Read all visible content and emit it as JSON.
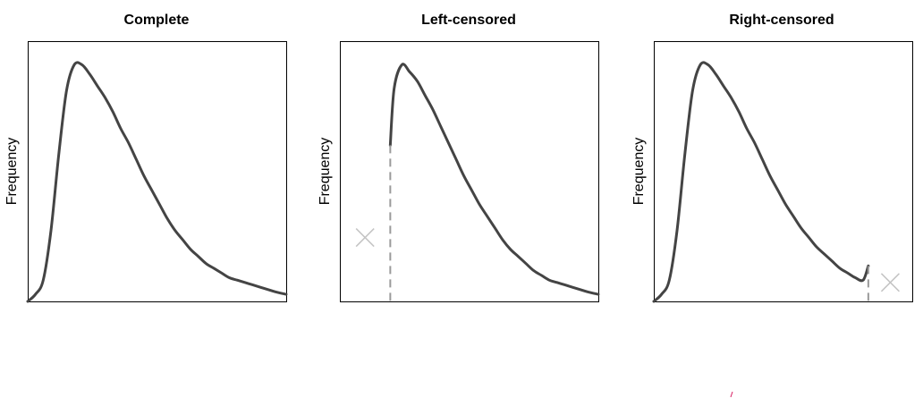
{
  "chart_data": [
    {
      "type": "line",
      "title": "Complete",
      "xlabel": "",
      "ylabel": "Frequency",
      "x_ticks_shown": false,
      "y_ticks_shown": false,
      "grid": false,
      "xlim": [
        0,
        10
      ],
      "ylim": [
        0,
        1.1
      ],
      "censoring": "none",
      "series": [
        {
          "x": [
            0.0,
            0.3,
            0.6,
            0.9,
            1.2,
            1.5,
            1.8,
            2.1,
            2.4,
            2.7,
            3.0,
            3.3,
            3.6,
            3.9,
            4.2,
            4.5,
            4.8,
            5.1,
            5.4,
            5.7,
            6.0,
            6.3,
            6.6,
            6.9,
            7.2,
            7.5,
            7.8,
            8.1,
            8.4,
            8.7,
            9.0,
            9.3,
            9.6,
            10.0
          ],
          "values": [
            0.0,
            0.03,
            0.09,
            0.3,
            0.62,
            0.89,
            1.0,
            1.0,
            0.96,
            0.91,
            0.86,
            0.8,
            0.73,
            0.67,
            0.6,
            0.53,
            0.47,
            0.41,
            0.35,
            0.3,
            0.26,
            0.22,
            0.19,
            0.16,
            0.14,
            0.12,
            0.1,
            0.09,
            0.08,
            0.07,
            0.06,
            0.05,
            0.04,
            0.03
          ]
        }
      ]
    },
    {
      "type": "line",
      "title": "Left-censored",
      "xlabel": "",
      "ylabel": "Frequency",
      "x_ticks_shown": false,
      "y_ticks_shown": false,
      "grid": false,
      "xlim": [
        0,
        10
      ],
      "ylim": [
        0,
        1.1
      ],
      "censoring": "left",
      "censor_x": 1.95,
      "censor_mark": "x",
      "censor_mark_color": "#c4c4c4",
      "series": [
        {
          "x": [
            1.95,
            2.1,
            2.4,
            2.7,
            3.0,
            3.3,
            3.6,
            3.9,
            4.2,
            4.5,
            4.8,
            5.1,
            5.4,
            5.7,
            6.0,
            6.3,
            6.6,
            6.9,
            7.2,
            7.5,
            7.8,
            8.1,
            8.4,
            8.7,
            9.0,
            9.3,
            9.6,
            10.0
          ],
          "values": [
            0.66,
            0.9,
            1.0,
            0.97,
            0.93,
            0.87,
            0.81,
            0.74,
            0.67,
            0.6,
            0.53,
            0.47,
            0.41,
            0.36,
            0.31,
            0.26,
            0.22,
            0.19,
            0.16,
            0.13,
            0.11,
            0.09,
            0.08,
            0.07,
            0.06,
            0.05,
            0.04,
            0.03
          ]
        }
      ]
    },
    {
      "type": "line",
      "title": "Right-censored",
      "xlabel": "",
      "ylabel": "Frequency",
      "x_ticks_shown": false,
      "y_ticks_shown": false,
      "grid": false,
      "xlim": [
        0,
        10
      ],
      "ylim": [
        0,
        1.1
      ],
      "censoring": "right",
      "censor_x": 8.3,
      "censor_mark": "x",
      "censor_mark_color": "#c4c4c4",
      "series": [
        {
          "x": [
            0.0,
            0.3,
            0.6,
            0.9,
            1.2,
            1.5,
            1.8,
            2.1,
            2.4,
            2.7,
            3.0,
            3.3,
            3.6,
            3.9,
            4.2,
            4.5,
            4.8,
            5.1,
            5.4,
            5.7,
            6.0,
            6.3,
            6.6,
            6.9,
            7.2,
            7.5,
            7.8,
            8.1,
            8.3
          ],
          "values": [
            0.0,
            0.03,
            0.09,
            0.3,
            0.62,
            0.89,
            1.0,
            1.0,
            0.96,
            0.91,
            0.86,
            0.8,
            0.73,
            0.67,
            0.6,
            0.53,
            0.47,
            0.41,
            0.36,
            0.31,
            0.27,
            0.23,
            0.2,
            0.17,
            0.14,
            0.12,
            0.1,
            0.09,
            0.15
          ]
        }
      ]
    }
  ],
  "colors": {
    "curve": "#444444",
    "frame": "#000000",
    "censor_line": "#9a9a9a",
    "censor_mark": "#c4c4c4",
    "corner_mark": "#d81b60"
  }
}
